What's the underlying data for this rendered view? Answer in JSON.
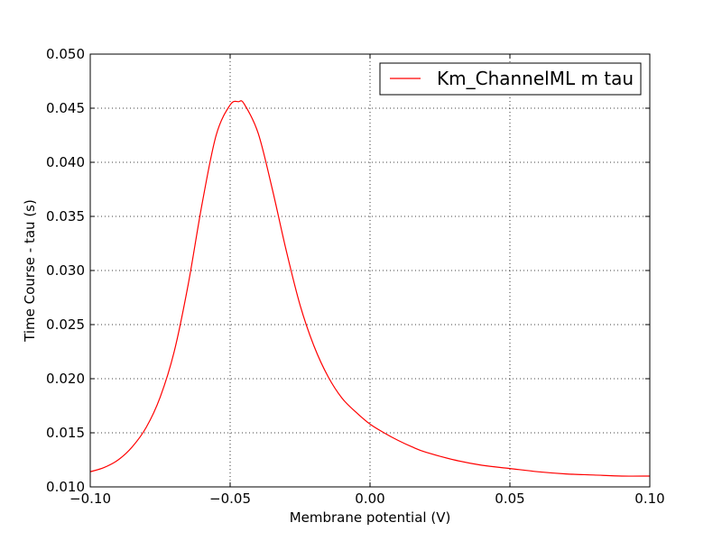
{
  "chart_data": {
    "type": "line",
    "title": "",
    "xlabel": "Membrane potential (V)",
    "ylabel": "Time Course - tau (s)",
    "xlim": [
      -0.1,
      0.1
    ],
    "ylim": [
      0.01,
      0.05
    ],
    "grid": true,
    "legend_position": "top-right",
    "x_ticks": [
      "−0.10",
      "−0.05",
      "0.00",
      "0.05",
      "0.10"
    ],
    "x_tick_values": [
      -0.1,
      -0.05,
      0.0,
      0.05,
      0.1
    ],
    "y_ticks": [
      "0.010",
      "0.015",
      "0.020",
      "0.025",
      "0.030",
      "0.035",
      "0.040",
      "0.045",
      "0.050"
    ],
    "y_tick_values": [
      0.01,
      0.015,
      0.02,
      0.025,
      0.03,
      0.035,
      0.04,
      0.045,
      0.05
    ],
    "series": [
      {
        "name": "Km_ChannelML m tau",
        "color": "#ff0000",
        "x": [
          -0.1,
          -0.095,
          -0.09,
          -0.085,
          -0.08,
          -0.075,
          -0.07,
          -0.065,
          -0.06,
          -0.055,
          -0.05,
          -0.047,
          -0.045,
          -0.04,
          -0.035,
          -0.03,
          -0.025,
          -0.02,
          -0.015,
          -0.01,
          -0.005,
          0.0,
          0.005,
          0.01,
          0.015,
          0.02,
          0.03,
          0.04,
          0.05,
          0.06,
          0.07,
          0.08,
          0.09,
          0.1
        ],
        "y": [
          0.0114,
          0.0118,
          0.0125,
          0.0137,
          0.0155,
          0.0183,
          0.0225,
          0.0287,
          0.0362,
          0.0425,
          0.0453,
          0.0456,
          0.0454,
          0.0427,
          0.0376,
          0.0319,
          0.0268,
          0.023,
          0.0202,
          0.0182,
          0.0169,
          0.0158,
          0.015,
          0.0143,
          0.0137,
          0.0132,
          0.0125,
          0.012,
          0.0117,
          0.0114,
          0.0112,
          0.0111,
          0.011,
          0.011
        ]
      }
    ]
  }
}
